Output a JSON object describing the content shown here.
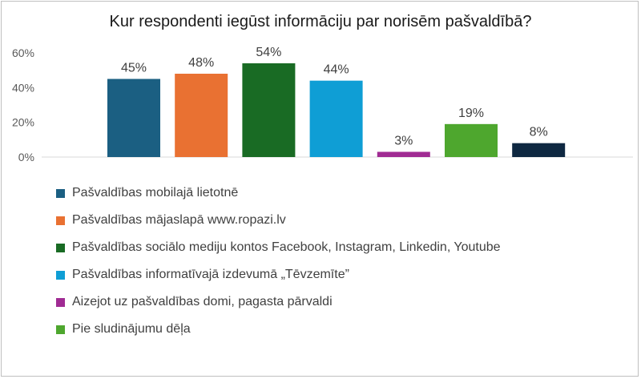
{
  "chart_data": {
    "type": "bar",
    "title": "Kur respondenti iegūst informāciju par norisēm pašvaldībā?",
    "ylim": [
      0,
      60
    ],
    "yticks": [
      0,
      20,
      40,
      60
    ],
    "ytick_labels": [
      "0%",
      "20%",
      "40%",
      "60%"
    ],
    "grid": false,
    "legend_position": "bottom",
    "series": [
      {
        "name": "Pašvaldības mobilajā lietotnē",
        "value": 45,
        "label": "45%",
        "color": "#1b5f82",
        "in_legend": true
      },
      {
        "name": "Pašvaldības mājaslapā www.ropazi.lv",
        "value": 48,
        "label": "48%",
        "color": "#e97132",
        "in_legend": true
      },
      {
        "name": "Pašvaldības sociālo mediju kontos Facebook, Instagram, Linkedin, Youtube",
        "value": 54,
        "label": "54%",
        "color": "#196b24",
        "in_legend": true
      },
      {
        "name": "Pašvaldības informatīvajā izdevumā „Tēvzemīte”",
        "value": 44,
        "label": "44%",
        "color": "#0f9ed5",
        "in_legend": true
      },
      {
        "name": "Aizejot uz pašvaldības domi, pagasta pārvaldi",
        "value": 3,
        "label": "3%",
        "color": "#a02b93",
        "in_legend": true
      },
      {
        "name": "Pie sludinājumu dēļa",
        "value": 19,
        "label": "19%",
        "color": "#4ea72e",
        "in_legend": true
      },
      {
        "name": "",
        "value": 8,
        "label": "8%",
        "color": "#0e2841",
        "in_legend": false
      }
    ]
  }
}
